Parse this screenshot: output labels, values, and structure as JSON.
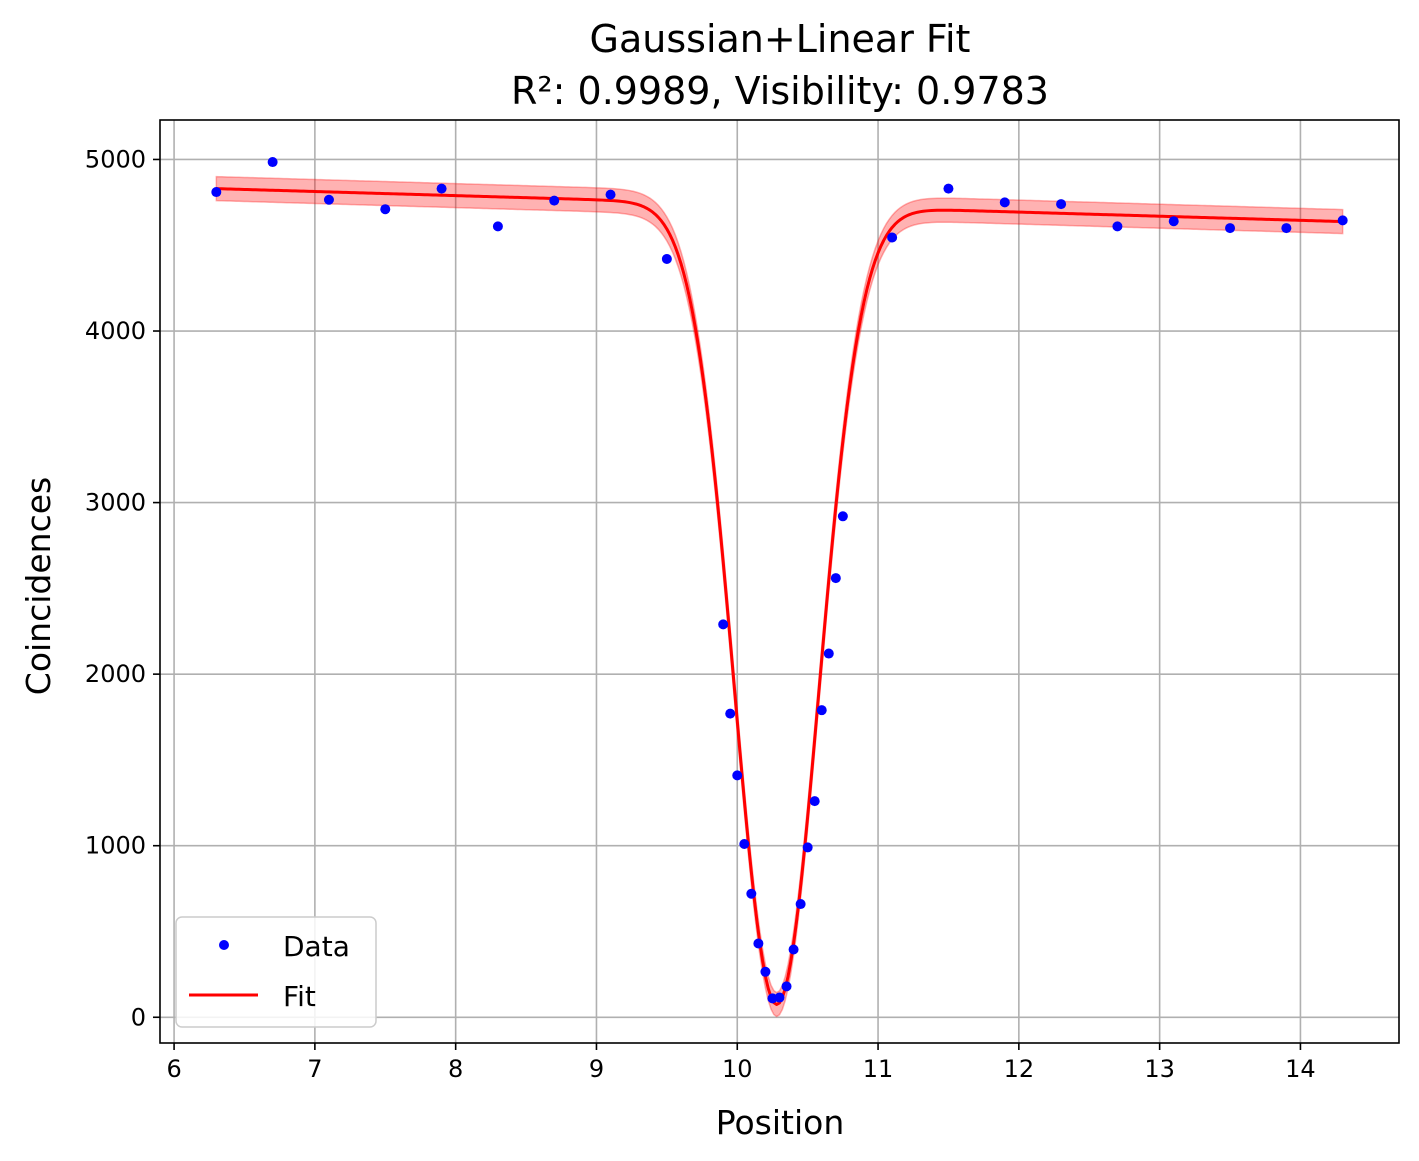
{
  "chart_data": {
    "type": "scatter",
    "title": "Gaussian+Linear Fit",
    "subtitle": "R²: 0.9989, Visibility: 0.9783",
    "xlabel": "Position",
    "ylabel": "Coincidences",
    "xlim": [
      5.9,
      14.7
    ],
    "ylim": [
      -150,
      5230
    ],
    "xticks": [
      6,
      7,
      8,
      9,
      10,
      11,
      12,
      13,
      14
    ],
    "yticks": [
      0,
      1000,
      2000,
      3000,
      4000,
      5000
    ],
    "grid": true,
    "legend_position": "lower-left",
    "series": [
      {
        "name": "Data",
        "kind": "points",
        "color": "#0000ff",
        "x": [
          6.3,
          6.7,
          7.1,
          7.5,
          7.9,
          8.3,
          8.7,
          9.1,
          9.5,
          9.9,
          9.95,
          10.0,
          10.05,
          10.1,
          10.15,
          10.2,
          10.25,
          10.3,
          10.35,
          10.4,
          10.45,
          10.5,
          10.55,
          10.6,
          10.65,
          10.7,
          10.75,
          11.1,
          11.5,
          11.9,
          12.3,
          12.7,
          13.1,
          13.5,
          13.9,
          14.3
        ],
        "y": [
          4810,
          4985,
          4765,
          4710,
          4830,
          4610,
          4760,
          4795,
          4420,
          2290,
          1770,
          1410,
          1010,
          720,
          430,
          265,
          110,
          115,
          180,
          395,
          660,
          990,
          1260,
          1790,
          2120,
          2560,
          2920,
          4545,
          4830,
          4750,
          4740,
          4610,
          4640,
          4600,
          4600,
          4645
        ]
      },
      {
        "name": "Fit",
        "kind": "line",
        "color": "#ff0000",
        "model": {
          "baseline_at_x0": 4830,
          "x0": 6.3,
          "slope": -24,
          "amplitude": 4660,
          "center": 10.28,
          "sigma": 0.3,
          "x_range": [
            6.3,
            14.3
          ],
          "band_halfwidth": 70,
          "band_color": "#ff0000"
        }
      }
    ]
  }
}
